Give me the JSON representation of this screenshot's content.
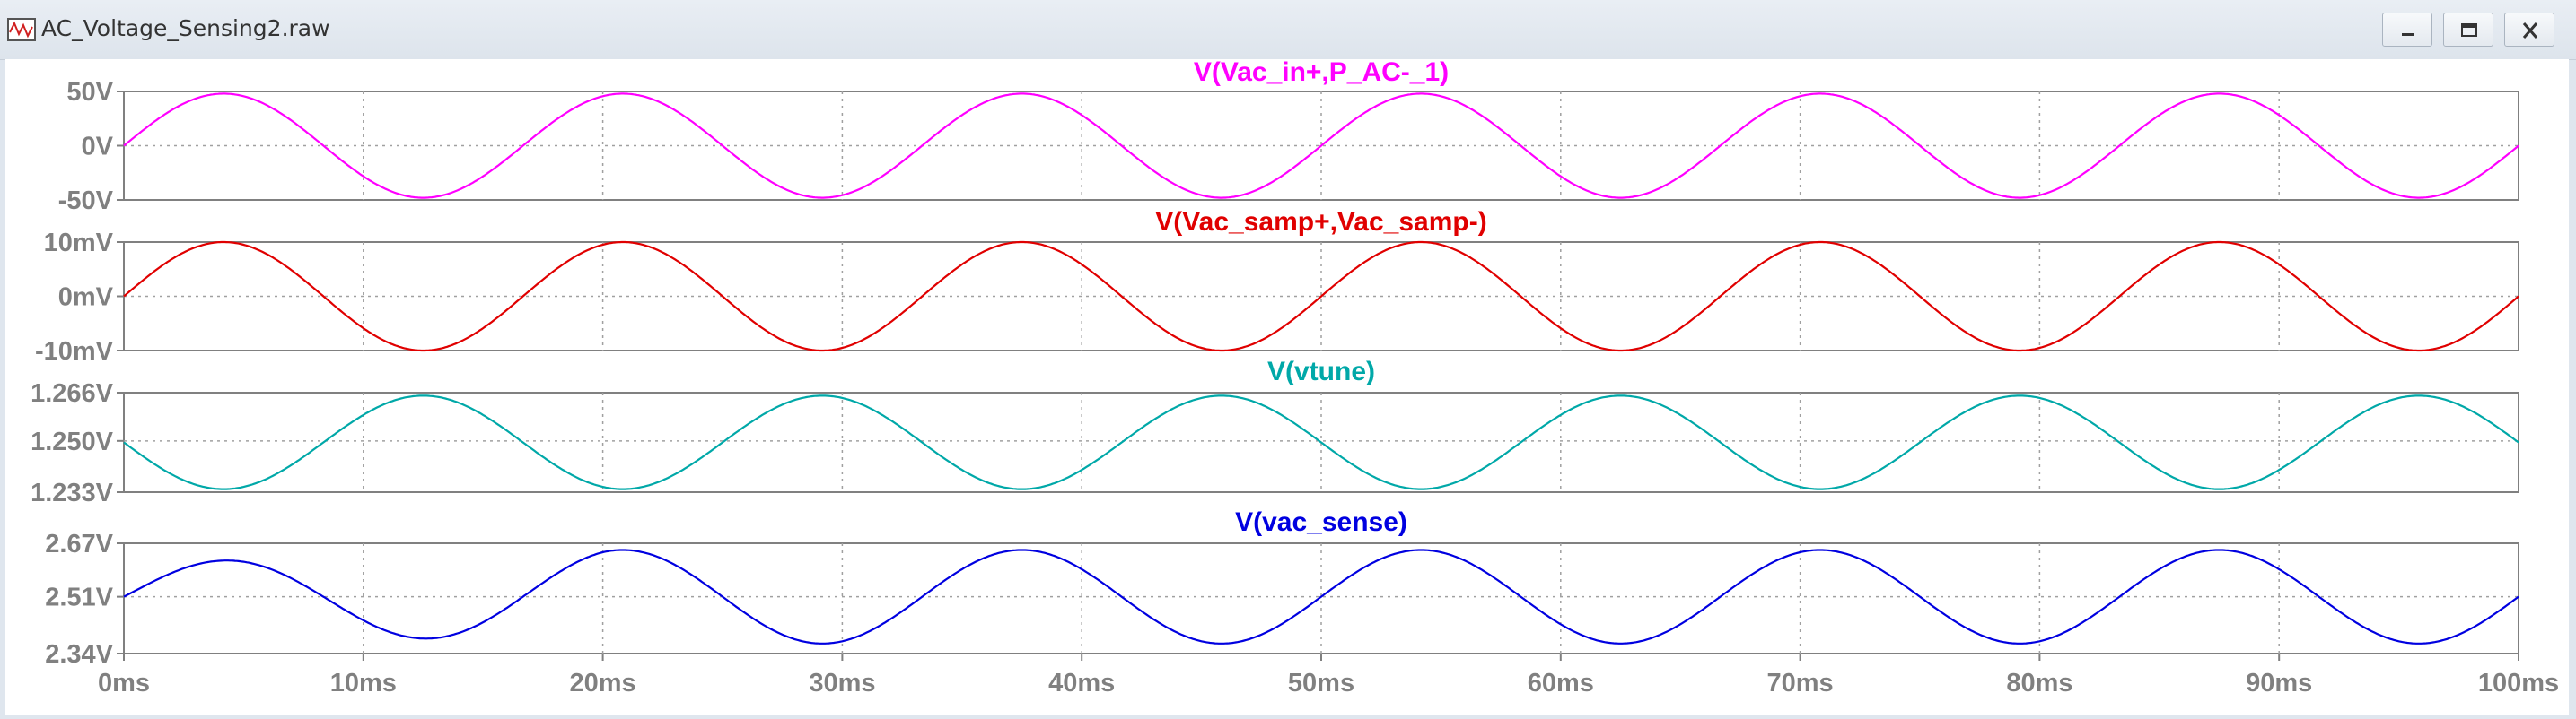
{
  "window": {
    "title": "AC_Voltage_Sensing2.raw",
    "buttons": [
      "minimize-icon",
      "maximize-icon",
      "close-icon"
    ]
  },
  "chart_data": [
    {
      "type": "line",
      "title": "V(Vac_in+,P_AC-_1)",
      "color": "#ff00ff",
      "x_unit": "ms",
      "xlim": [
        0,
        100
      ],
      "ylim": [
        -50,
        50
      ],
      "ytick_labels": [
        "50V",
        "0V",
        "-50V"
      ],
      "yticks": [
        50,
        0,
        -50
      ],
      "signal": {
        "form": "sine",
        "frequency_hz": 60,
        "amplitude": 48,
        "offset": 0,
        "phase_deg": 0
      },
      "grid": true
    },
    {
      "type": "line",
      "title": "V(Vac_samp+,Vac_samp-)",
      "color": "#e00000",
      "x_unit": "ms",
      "xlim": [
        0,
        100
      ],
      "ylim": [
        -10,
        10
      ],
      "ytick_labels": [
        "10mV",
        "0mV",
        "-10mV"
      ],
      "yticks": [
        10,
        0,
        -10
      ],
      "signal": {
        "form": "sine",
        "frequency_hz": 60,
        "amplitude": 10,
        "offset": 0,
        "phase_deg": 0
      },
      "grid": true
    },
    {
      "type": "line",
      "title": "V(vtune)",
      "color": "#00a8a8",
      "x_unit": "ms",
      "xlim": [
        0,
        100
      ],
      "ylim": [
        1.233,
        1.266
      ],
      "ytick_labels": [
        "1.266V",
        "1.250V",
        "1.233V"
      ],
      "yticks": [
        1.266,
        1.25,
        1.233
      ],
      "signal": {
        "form": "sine",
        "frequency_hz": 60,
        "amplitude": 0.0155,
        "offset": 1.2495,
        "phase_deg": 180
      },
      "grid": true
    },
    {
      "type": "line",
      "title": "V(vac_sense)",
      "color": "#0000e0",
      "x_unit": "ms",
      "xlim": [
        0,
        100
      ],
      "ylim": [
        2.34,
        2.67
      ],
      "ytick_labels": [
        "2.67V",
        "2.51V",
        "2.34V"
      ],
      "yticks": [
        2.67,
        2.51,
        2.34
      ],
      "signal": {
        "form": "sine",
        "frequency_hz": 60,
        "amplitude": 0.14,
        "offset": 2.51,
        "phase_deg": 0,
        "initial_amplitude": 0.1,
        "settle_ms": 20
      },
      "grid": true
    }
  ],
  "x_axis": {
    "ticks": [
      0,
      10,
      20,
      30,
      40,
      50,
      60,
      70,
      80,
      90,
      100
    ],
    "tick_labels": [
      "0ms",
      "10ms",
      "20ms",
      "30ms",
      "40ms",
      "50ms",
      "60ms",
      "70ms",
      "80ms",
      "90ms",
      "100ms"
    ]
  },
  "colors": {
    "axis_text": "#808080",
    "grid": "#a0a0a0",
    "background": "#ffffff"
  }
}
